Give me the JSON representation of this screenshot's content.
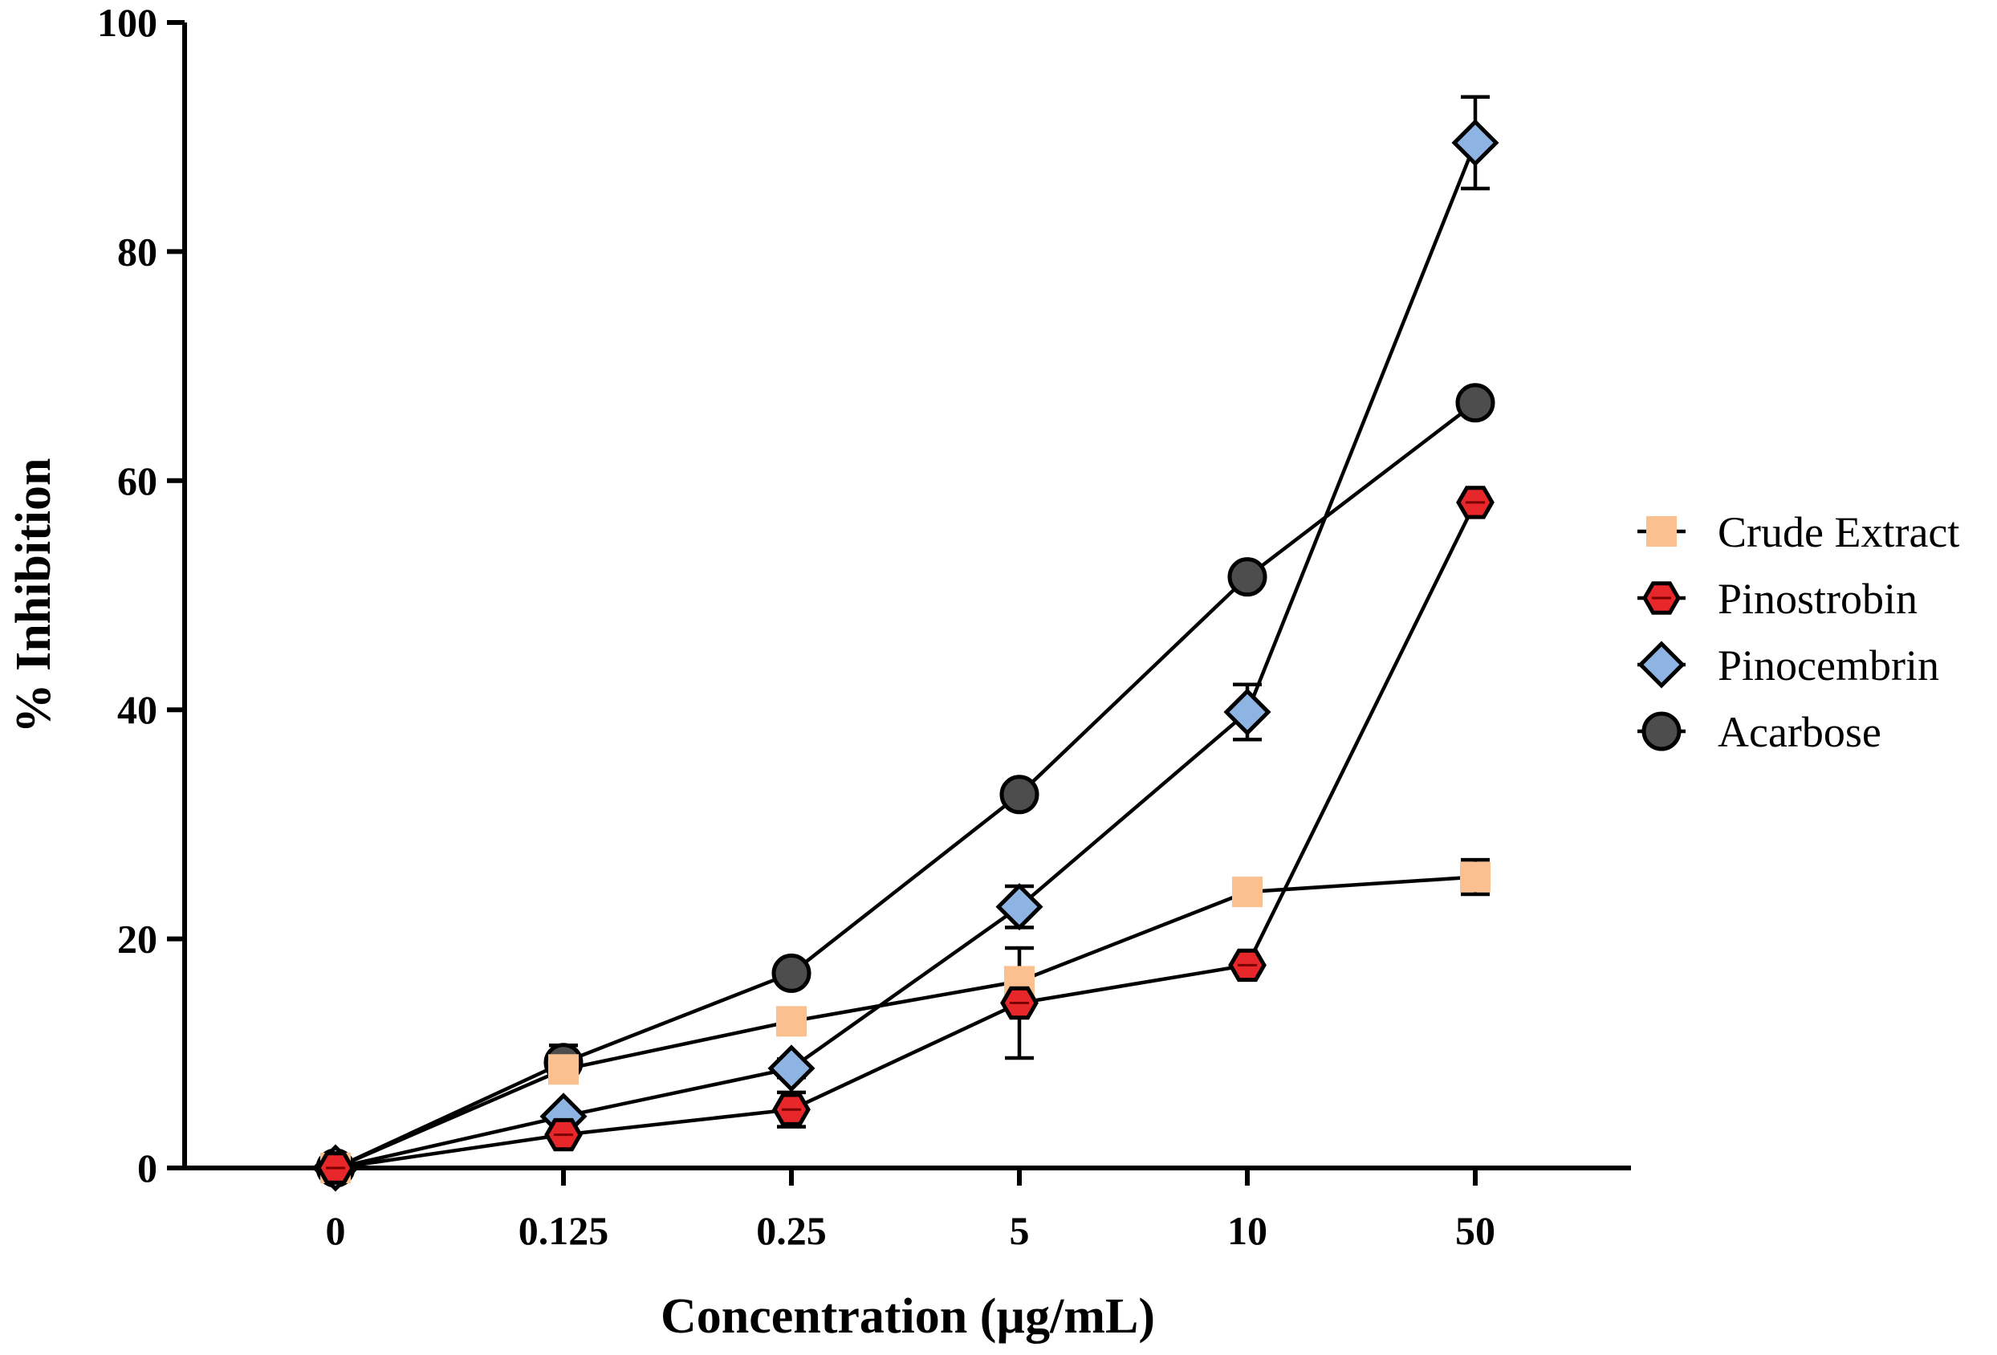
{
  "chart_data": {
    "type": "line",
    "title": "",
    "xlabel": "Concentration (µg/mL)",
    "ylabel": "% Inhibition",
    "categories": [
      "0",
      "0.125",
      "0.25",
      "5",
      "10",
      "50"
    ],
    "ylim": [
      0,
      100
    ],
    "yticks": [
      "0",
      "20",
      "40",
      "60",
      "80",
      "100"
    ],
    "legend_position": "right",
    "series": [
      {
        "name": "Acarbose",
        "marker": "circle",
        "color": "#4d4d4d",
        "values": [
          0,
          9.2,
          17.0,
          32.6,
          51.6,
          66.8
        ],
        "errors": [
          1.0,
          1.5,
          0.6,
          0.6,
          0.6,
          0.6
        ]
      },
      {
        "name": "Pinocembrin",
        "marker": "diamond",
        "color": "#8db4e2",
        "values": [
          0,
          4.5,
          8.7,
          22.8,
          39.8,
          89.5
        ],
        "errors": [
          0.5,
          0.6,
          0.8,
          1.8,
          2.4,
          4.0
        ]
      },
      {
        "name": "Crude Extract",
        "marker": "square",
        "color": "#fac090",
        "values": [
          0,
          8.6,
          12.8,
          16.3,
          24.1,
          25.4
        ],
        "errors": [
          0.5,
          0.6,
          1.0,
          0.6,
          0.6,
          1.5
        ]
      },
      {
        "name": "Pinostrobin",
        "marker": "hexagon",
        "color": "#e8272a",
        "values": [
          0,
          2.9,
          5.1,
          14.4,
          17.7,
          58.1
        ],
        "errors": [
          0.4,
          0.5,
          1.5,
          4.8,
          0.6,
          0.6
        ]
      }
    ],
    "legend_order": [
      "Crude Extract",
      "Pinostrobin",
      "Pinocembrin",
      "Acarbose"
    ]
  }
}
